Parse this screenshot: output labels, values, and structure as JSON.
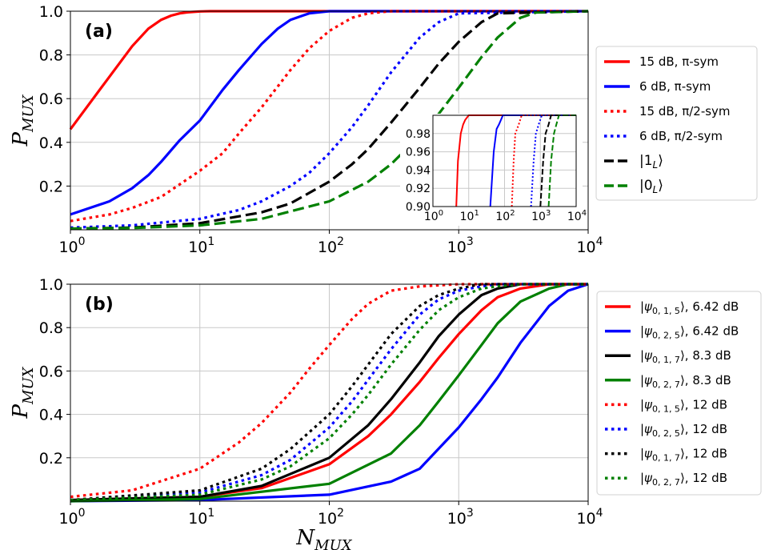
{
  "chart_data": [
    {
      "type": "line",
      "panel_label": "(a)",
      "xscale": "log",
      "xlim": [
        1,
        10000
      ],
      "ylim": [
        0,
        1.0
      ],
      "xlabel": "",
      "ylabel": "P_MUX",
      "ylabel_main": "P",
      "ylabel_sub": "MUX",
      "yticks": [
        "1.0",
        "0.8",
        "0.6",
        "0.4",
        "0.2"
      ],
      "xticks": [
        {
          "base": "10",
          "exp": "0"
        },
        {
          "base": "10",
          "exp": "1"
        },
        {
          "base": "10",
          "exp": "2"
        },
        {
          "base": "10",
          "exp": "3"
        },
        {
          "base": "10",
          "exp": "4"
        }
      ],
      "grid": true,
      "legend_position": "outside-right",
      "series": [
        {
          "name": "15 dB, π-sym",
          "legend_text": "15 dB, π-sym",
          "color": "#ff0000",
          "style": "solid",
          "x": [
            1,
            2,
            3,
            4,
            5,
            6,
            7,
            8,
            10,
            12,
            15,
            20,
            30,
            50,
            100,
            10000
          ],
          "y": [
            0.46,
            0.7,
            0.84,
            0.92,
            0.96,
            0.98,
            0.99,
            0.995,
            0.999,
            1.0,
            1.0,
            1.0,
            1.0,
            1.0,
            1.0,
            1.0
          ]
        },
        {
          "name": "6 dB, π-sym",
          "legend_text": "6 dB,  π-sym",
          "color": "#0000ff",
          "style": "solid",
          "x": [
            1,
            2,
            3,
            4,
            5,
            7,
            10,
            15,
            20,
            30,
            40,
            50,
            70,
            100,
            10000
          ],
          "y": [
            0.07,
            0.13,
            0.19,
            0.25,
            0.31,
            0.41,
            0.5,
            0.64,
            0.73,
            0.85,
            0.92,
            0.96,
            0.99,
            1.0,
            1.0
          ]
        },
        {
          "name": "15 dB, π/2-sym",
          "legend_text": "15 dB, π/2-sym",
          "color": "#ff0000",
          "style": "dotted",
          "x": [
            1,
            2,
            3,
            5,
            10,
            15,
            20,
            30,
            50,
            70,
            100,
            150,
            200,
            300,
            10000
          ],
          "y": [
            0.04,
            0.07,
            0.1,
            0.15,
            0.27,
            0.35,
            0.44,
            0.56,
            0.73,
            0.83,
            0.91,
            0.97,
            0.99,
            1.0,
            1.0
          ]
        },
        {
          "name": "6 dB, π/2-sym",
          "legend_text": "6 dB, π/2-sym",
          "color": "#0000ff",
          "style": "dotted",
          "x": [
            1,
            3,
            10,
            20,
            30,
            50,
            70,
            100,
            150,
            200,
            300,
            500,
            700,
            1000,
            10000
          ],
          "y": [
            0.01,
            0.02,
            0.05,
            0.09,
            0.13,
            0.2,
            0.26,
            0.35,
            0.47,
            0.57,
            0.72,
            0.88,
            0.95,
            0.99,
            1.0
          ]
        },
        {
          "name": "|1_L⟩",
          "legend_text": "|1",
          "legend_sub": "L",
          "legend_after": "⟩",
          "color": "#000000",
          "style": "dashed",
          "x": [
            1,
            3,
            10,
            30,
            50,
            100,
            150,
            200,
            300,
            500,
            700,
            1000,
            1500,
            2000,
            10000
          ],
          "y": [
            0.005,
            0.01,
            0.03,
            0.08,
            0.12,
            0.22,
            0.3,
            0.37,
            0.49,
            0.65,
            0.76,
            0.86,
            0.95,
            0.99,
            1.0
          ]
        },
        {
          "name": "|0_L⟩",
          "legend_text": "|0",
          "legend_sub": "L",
          "legend_after": "⟩",
          "color": "#008000",
          "style": "dashed",
          "x": [
            1,
            3,
            10,
            30,
            100,
            200,
            300,
            500,
            700,
            1000,
            1500,
            2000,
            3000,
            4000,
            10000
          ],
          "y": [
            0.005,
            0.008,
            0.02,
            0.05,
            0.13,
            0.22,
            0.3,
            0.43,
            0.53,
            0.65,
            0.79,
            0.88,
            0.97,
            0.995,
            1.0
          ]
        }
      ],
      "inset": {
        "xscale": "log",
        "xlim": [
          1,
          10000
        ],
        "ylim": [
          0.9,
          1.0
        ],
        "yticks": [
          "0.98",
          "0.96",
          "0.94",
          "0.92",
          "0.90"
        ],
        "xticks": [
          {
            "base": "10",
            "exp": "0"
          },
          {
            "base": "10",
            "exp": "1"
          },
          {
            "base": "10",
            "exp": "2"
          },
          {
            "base": "10",
            "exp": "3"
          },
          {
            "base": "10",
            "exp": "4"
          }
        ],
        "series": [
          {
            "color": "#ff0000",
            "style": "solid",
            "x": [
              4.5,
              5,
              6,
              7,
              8,
              10,
              10000
            ],
            "y": [
              0.9,
              0.95,
              0.98,
              0.99,
              0.995,
              1.0,
              1.0
            ]
          },
          {
            "color": "#0000ff",
            "style": "solid",
            "x": [
              40,
              50,
              60,
              70,
              90,
              10000
            ],
            "y": [
              0.9,
              0.96,
              0.985,
              0.99,
              1.0,
              1.0
            ]
          },
          {
            "color": "#ff0000",
            "style": "dotted",
            "x": [
              160,
              180,
              200,
              250,
              300,
              10000
            ],
            "y": [
              0.9,
              0.95,
              0.98,
              0.99,
              1.0,
              1.0
            ]
          },
          {
            "color": "#0000ff",
            "style": "dotted",
            "x": [
              550,
              650,
              750,
              900,
              1100,
              10000
            ],
            "y": [
              0.9,
              0.95,
              0.98,
              0.99,
              1.0,
              1.0
            ]
          },
          {
            "color": "#000000",
            "style": "dashed",
            "x": [
              1000,
              1200,
              1400,
              1700,
              2000,
              10000
            ],
            "y": [
              0.9,
              0.95,
              0.98,
              0.99,
              1.0,
              1.0
            ]
          },
          {
            "color": "#008000",
            "style": "dashed",
            "x": [
              1700,
              2000,
              2400,
              2800,
              3300,
              10000
            ],
            "y": [
              0.9,
              0.95,
              0.98,
              0.99,
              1.0,
              1.0
            ]
          }
        ]
      }
    },
    {
      "type": "line",
      "panel_label": "(b)",
      "xscale": "log",
      "xlim": [
        1,
        10000
      ],
      "ylim": [
        0,
        1.0
      ],
      "xlabel": "N_MUX",
      "xlabel_main": "N",
      "xlabel_sub": "MUX",
      "ylabel": "P_MUX",
      "ylabel_main": "P",
      "ylabel_sub": "MUX",
      "yticks": [
        "1.0",
        "0.8",
        "0.6",
        "0.4",
        "0.2"
      ],
      "xticks": [
        {
          "base": "10",
          "exp": "0"
        },
        {
          "base": "10",
          "exp": "1"
        },
        {
          "base": "10",
          "exp": "2"
        },
        {
          "base": "10",
          "exp": "3"
        },
        {
          "base": "10",
          "exp": "4"
        }
      ],
      "grid": true,
      "legend_position": "outside-right",
      "series": [
        {
          "name": "|ψ0,1,5⟩, 6.42 dB",
          "ket": "|ψ",
          "sub": "0, 1, 5",
          "suffix": "⟩, 6.42 dB",
          "color": "#ff0000",
          "style": "solid",
          "x": [
            1,
            10,
            30,
            100,
            200,
            300,
            500,
            700,
            1000,
            1500,
            2000,
            3000,
            5000,
            10000
          ],
          "y": [
            0.005,
            0.02,
            0.06,
            0.17,
            0.3,
            0.4,
            0.55,
            0.66,
            0.77,
            0.88,
            0.94,
            0.98,
            1.0,
            1.0
          ]
        },
        {
          "name": "|ψ0,2,5⟩, 6.42 dB",
          "ket": "|ψ",
          "sub": "0, 2, 5",
          "suffix": "⟩, 6.42 dB",
          "color": "#0000ff",
          "style": "solid",
          "x": [
            1,
            10,
            100,
            300,
            500,
            1000,
            1500,
            2000,
            3000,
            5000,
            7000,
            10000
          ],
          "y": [
            0.0,
            0.005,
            0.03,
            0.09,
            0.15,
            0.34,
            0.47,
            0.57,
            0.73,
            0.9,
            0.97,
            1.0
          ]
        },
        {
          "name": "|ψ0,1,7⟩, 8.3 dB",
          "ket": "|ψ",
          "sub": "0, 1, 7",
          "suffix": "⟩, 8.3 dB",
          "color": "#000000",
          "style": "solid",
          "x": [
            1,
            10,
            30,
            100,
            200,
            300,
            500,
            700,
            1000,
            1500,
            2000,
            3000,
            10000
          ],
          "y": [
            0.005,
            0.02,
            0.07,
            0.2,
            0.35,
            0.47,
            0.64,
            0.76,
            0.86,
            0.95,
            0.98,
            1.0,
            1.0
          ]
        },
        {
          "name": "|ψ0,2,7⟩, 8.3 dB",
          "ket": "|ψ",
          "sub": "0, 2, 7",
          "suffix": "⟩, 8.3 dB",
          "color": "#008000",
          "style": "solid",
          "x": [
            1,
            10,
            100,
            300,
            500,
            700,
            1000,
            1500,
            2000,
            3000,
            5000,
            7000,
            10000
          ],
          "y": [
            0.0,
            0.01,
            0.08,
            0.22,
            0.35,
            0.46,
            0.58,
            0.72,
            0.82,
            0.92,
            0.98,
            1.0,
            1.0
          ]
        },
        {
          "name": "|ψ0,1,5⟩, 12 dB",
          "ket": "|ψ",
          "sub": "0, 1, 5",
          "suffix": "⟩, 12 dB",
          "color": "#ff0000",
          "style": "dotted",
          "x": [
            1,
            3,
            10,
            20,
            30,
            50,
            70,
            100,
            150,
            200,
            300,
            500,
            1000,
            10000
          ],
          "y": [
            0.02,
            0.05,
            0.15,
            0.27,
            0.36,
            0.5,
            0.61,
            0.72,
            0.84,
            0.91,
            0.97,
            0.99,
            1.0,
            1.0
          ]
        },
        {
          "name": "|ψ0,2,5⟩, 12 dB",
          "ket": "|ψ",
          "sub": "0, 2, 5",
          "suffix": "⟩, 12 dB",
          "color": "#0000ff",
          "style": "dotted",
          "x": [
            1,
            10,
            30,
            50,
            100,
            150,
            200,
            300,
            500,
            700,
            1000,
            1500,
            2000,
            10000
          ],
          "y": [
            0.005,
            0.04,
            0.12,
            0.19,
            0.34,
            0.46,
            0.56,
            0.7,
            0.86,
            0.93,
            0.97,
            0.99,
            1.0,
            1.0
          ]
        },
        {
          "name": "|ψ0,1,7⟩, 12 dB",
          "ket": "|ψ",
          "sub": "0, 1, 7",
          "suffix": "⟩, 12 dB",
          "color": "#000000",
          "style": "dotted",
          "x": [
            1,
            10,
            30,
            50,
            100,
            150,
            200,
            300,
            500,
            700,
            1000,
            1500,
            10000
          ],
          "y": [
            0.005,
            0.05,
            0.15,
            0.24,
            0.4,
            0.53,
            0.63,
            0.77,
            0.9,
            0.95,
            0.98,
            1.0,
            1.0
          ]
        },
        {
          "name": "|ψ0,2,7⟩, 12 dB",
          "ket": "|ψ",
          "sub": "0, 2, 7",
          "suffix": "⟩, 12 dB",
          "color": "#008000",
          "style": "dotted",
          "x": [
            1,
            10,
            30,
            50,
            100,
            150,
            200,
            300,
            500,
            700,
            1000,
            1500,
            2000,
            3000,
            10000
          ],
          "y": [
            0.005,
            0.03,
            0.1,
            0.16,
            0.29,
            0.4,
            0.49,
            0.63,
            0.79,
            0.88,
            0.94,
            0.98,
            0.99,
            1.0,
            1.0
          ]
        }
      ]
    }
  ]
}
